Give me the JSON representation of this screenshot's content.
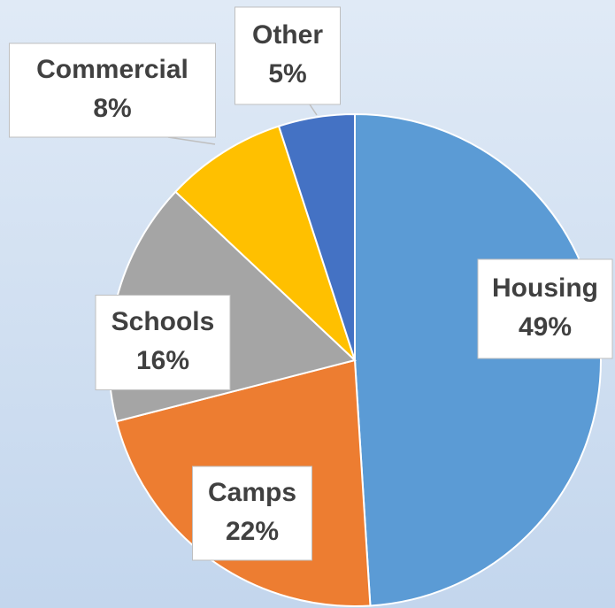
{
  "chart_data": {
    "type": "pie",
    "categories": [
      "Housing",
      "Camps",
      "Schools",
      "Commercial",
      "Other"
    ],
    "values": [
      49,
      22,
      16,
      8,
      5
    ],
    "value_labels": [
      "49%",
      "22%",
      "16%",
      "8%",
      "5%"
    ],
    "colors": [
      "#5b9bd5",
      "#ed7d31",
      "#a5a5a5",
      "#ffc000",
      "#4472c4"
    ]
  }
}
